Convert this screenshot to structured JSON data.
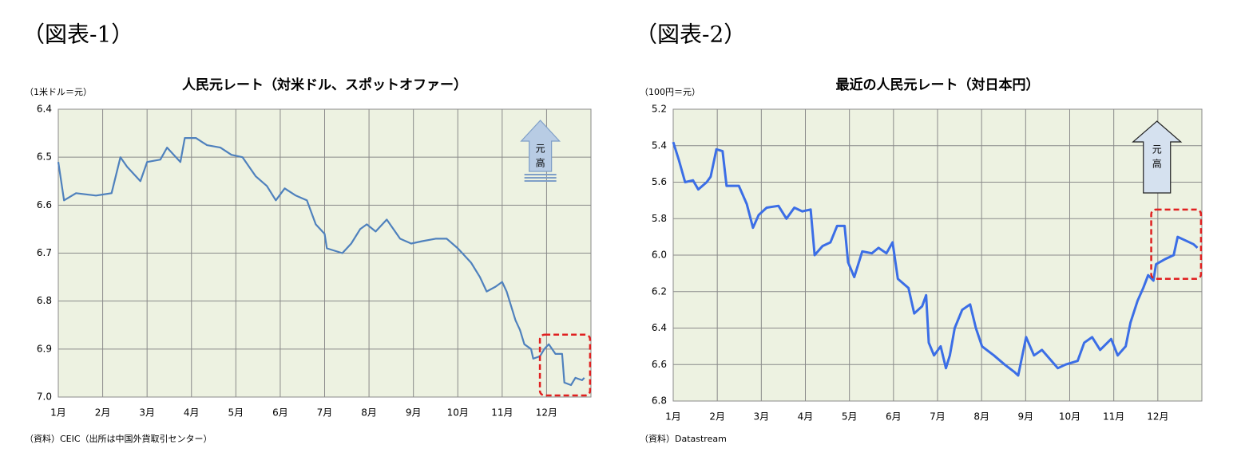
{
  "chart_data": [
    {
      "type": "line",
      "figure_label": "（図表-1）",
      "title": "人民元レート（対米ドル、スポットオファー）",
      "y_unit_label": "（1米ドル＝元）",
      "source": "（資料）CEIC（出所は中国外貨取引センター）",
      "arrow_label": [
        "元",
        "高"
      ],
      "color": "#4f81bd",
      "grid": true,
      "xlim": [
        0,
        12
      ],
      "ylim": [
        7.0,
        6.4
      ],
      "xticks": [
        {
          "value": 0,
          "label": "1月"
        },
        {
          "value": 1,
          "label": "2月"
        },
        {
          "value": 2,
          "label": "3月"
        },
        {
          "value": 3,
          "label": "4月"
        },
        {
          "value": 4,
          "label": "5月"
        },
        {
          "value": 5,
          "label": "6月"
        },
        {
          "value": 6,
          "label": "7月"
        },
        {
          "value": 7,
          "label": "8月"
        },
        {
          "value": 8,
          "label": "9月"
        },
        {
          "value": 9,
          "label": "10月"
        },
        {
          "value": 10,
          "label": "11月"
        },
        {
          "value": 11,
          "label": "12月"
        }
      ],
      "yticks": [
        6.4,
        6.5,
        6.6,
        6.7,
        6.8,
        6.9,
        {
          "value": 7,
          "label": "7.0"
        }
      ],
      "x": [
        0,
        0.13,
        0.4,
        0.85,
        1.2,
        1.4,
        1.55,
        1.85,
        2.0,
        2.3,
        2.45,
        2.75,
        2.85,
        3.1,
        3.35,
        3.65,
        3.9,
        4.15,
        4.45,
        4.7,
        4.9,
        5.1,
        5.35,
        5.6,
        5.8,
        6.0,
        6.05,
        6.4,
        6.6,
        6.8,
        6.95,
        7.15,
        7.4,
        7.7,
        7.95,
        8.2,
        8.5,
        8.75,
        9.0,
        9.3,
        9.5,
        9.65,
        9.85,
        10.0,
        10.1,
        10.3,
        10.4,
        10.5,
        10.65,
        10.7,
        10.85,
        10.95,
        11.05,
        11.2,
        11.35,
        11.4,
        11.55,
        11.65,
        11.8,
        11.85
      ],
      "values": [
        6.51,
        6.59,
        6.575,
        6.58,
        6.575,
        6.5,
        6.52,
        6.55,
        6.51,
        6.505,
        6.48,
        6.51,
        6.46,
        6.46,
        6.475,
        6.48,
        6.495,
        6.5,
        6.54,
        6.56,
        6.59,
        6.565,
        6.58,
        6.59,
        6.64,
        6.66,
        6.69,
        6.7,
        6.68,
        6.65,
        6.64,
        6.655,
        6.63,
        6.67,
        6.68,
        6.675,
        6.67,
        6.67,
        6.69,
        6.72,
        6.75,
        6.78,
        6.77,
        6.76,
        6.78,
        6.84,
        6.86,
        6.89,
        6.9,
        6.92,
        6.915,
        6.9,
        6.89,
        6.91,
        6.91,
        6.97,
        6.975,
        6.96,
        6.965,
        6.96
      ]
    },
    {
      "type": "line",
      "figure_label": "（図表-2）",
      "title": "最近の人民元レート（対日本円）",
      "y_unit_label": "（100円＝元）",
      "source": "（資料）Datastream",
      "arrow_label": [
        "元",
        "高"
      ],
      "color": "#3b6ee6",
      "grid": true,
      "xlim": [
        0,
        12
      ],
      "ylim": [
        6.8,
        5.2
      ],
      "xticks": [
        {
          "value": 0,
          "label": "1月"
        },
        {
          "value": 1,
          "label": "2月"
        },
        {
          "value": 2,
          "label": "3月"
        },
        {
          "value": 3,
          "label": "4月"
        },
        {
          "value": 4,
          "label": "5月"
        },
        {
          "value": 5,
          "label": "6月"
        },
        {
          "value": 6,
          "label": "7月"
        },
        {
          "value": 7,
          "label": "8月"
        },
        {
          "value": 8,
          "label": "9月"
        },
        {
          "value": 9,
          "label": "10月"
        },
        {
          "value": 10,
          "label": "11月"
        },
        {
          "value": 11,
          "label": "12月"
        }
      ],
      "yticks": [
        5.2,
        5.4,
        5.6,
        5.8,
        {
          "value": 6,
          "label": "6.0"
        },
        6.2,
        6.4,
        6.6,
        6.8
      ],
      "x": [
        0,
        0.13,
        0.27,
        0.45,
        0.57,
        0.76,
        0.85,
        0.98,
        1.12,
        1.21,
        1.49,
        1.67,
        1.81,
        1.94,
        2.12,
        2.39,
        2.57,
        2.75,
        2.93,
        3.12,
        3.21,
        3.39,
        3.57,
        3.72,
        3.89,
        3.97,
        4.11,
        4.29,
        4.51,
        4.66,
        4.84,
        4.98,
        5.1,
        5.34,
        5.47,
        5.65,
        5.74,
        5.8,
        5.92,
        6.07,
        6.19,
        6.28,
        6.39,
        6.56,
        6.74,
        6.87,
        7.01,
        7.28,
        7.52,
        7.74,
        7.83,
        8.01,
        8.19,
        8.37,
        8.55,
        8.73,
        8.91,
        9.18,
        9.33,
        9.51,
        9.69,
        9.94,
        10.09,
        10.27,
        10.38,
        10.54,
        10.67,
        10.78,
        10.9,
        10.96,
        11.18,
        11.36,
        11.45,
        11.63,
        11.81,
        11.9
      ],
      "values": [
        5.38,
        5.48,
        5.6,
        5.59,
        5.64,
        5.6,
        5.57,
        5.42,
        5.43,
        5.62,
        5.62,
        5.72,
        5.85,
        5.78,
        5.74,
        5.73,
        5.8,
        5.74,
        5.76,
        5.75,
        6.0,
        5.95,
        5.93,
        5.84,
        5.84,
        6.04,
        6.12,
        5.98,
        5.99,
        5.96,
        5.99,
        5.93,
        6.13,
        6.18,
        6.32,
        6.28,
        6.22,
        6.48,
        6.55,
        6.5,
        6.62,
        6.55,
        6.4,
        6.3,
        6.27,
        6.4,
        6.5,
        6.55,
        6.6,
        6.64,
        6.66,
        6.45,
        6.55,
        6.52,
        6.57,
        6.62,
        6.6,
        6.58,
        6.48,
        6.45,
        6.52,
        6.46,
        6.55,
        6.5,
        6.37,
        6.25,
        6.18,
        6.11,
        6.14,
        6.05,
        6.02,
        6.0,
        5.9,
        5.92,
        5.94,
        5.96
      ]
    }
  ]
}
